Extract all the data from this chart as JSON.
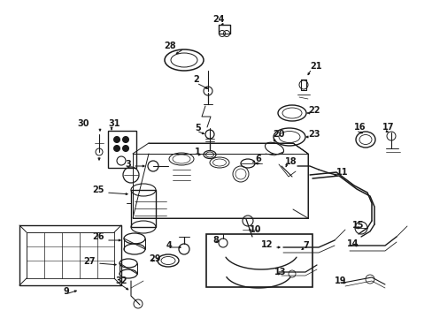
{
  "bg_color": "#ffffff",
  "fig_width": 4.89,
  "fig_height": 3.6,
  "dpi": 100,
  "lc": "#1a1a1a",
  "lw": 0.7,
  "label_fontsize": 7.0
}
